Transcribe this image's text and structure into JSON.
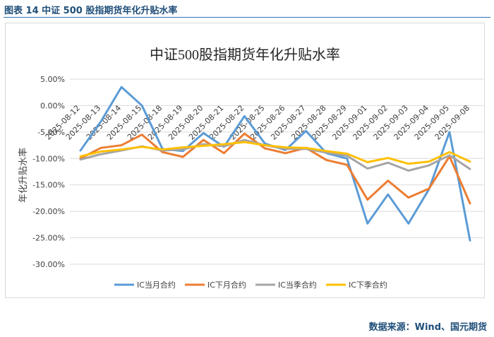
{
  "header": {
    "figure_title": "图表 14  中证 500 股指期货年化升贴水率"
  },
  "footer": {
    "source": "数据来源：Wind、国元期货"
  },
  "chart_data": {
    "type": "line",
    "title": "中证500股指期货年化升贴水率",
    "ylabel": "年化升贴水率",
    "xlabel": "",
    "ylim": [
      -30,
      5
    ],
    "y_tick_step": 5,
    "y_tick_format": "percent_2dp",
    "grid": "horizontal",
    "legend_position": "bottom",
    "categories": [
      "2025-08-12",
      "2025-08-13",
      "2025-08-14",
      "2025-08-15",
      "2025-08-18",
      "2025-08-19",
      "2025-08-20",
      "2025-08-21",
      "2025-08-22",
      "2025-08-25",
      "2025-08-26",
      "2025-08-27",
      "2025-08-28",
      "2025-08-29",
      "2025-09-01",
      "2025-09-02",
      "2025-09-03",
      "2025-09-04",
      "2025-09-05",
      "2025-09-08"
    ],
    "series": [
      {
        "name": "IC当月合约",
        "color": "#5b9bd5",
        "values": [
          -8.5,
          -3.0,
          3.5,
          0.0,
          -8.2,
          -8.6,
          -5.2,
          -7.8,
          -2.0,
          -7.2,
          -8.4,
          -4.8,
          -9.0,
          -10.0,
          -22.3,
          -16.8,
          -22.3,
          -15.8,
          -5.0,
          -25.5
        ]
      },
      {
        "name": "IC下月合约",
        "color": "#ed7d31",
        "values": [
          -10.0,
          -8.0,
          -7.5,
          -5.5,
          -8.8,
          -9.7,
          -6.5,
          -9.0,
          -5.3,
          -8.1,
          -9.0,
          -8.0,
          -10.3,
          -11.2,
          -17.8,
          -14.2,
          -17.4,
          -15.7,
          -9.6,
          -18.5
        ]
      },
      {
        "name": "IC当季合约",
        "color": "#a5a5a5",
        "values": [
          -10.2,
          -9.2,
          -8.5,
          -7.7,
          -8.5,
          -8.3,
          -7.3,
          -7.7,
          -6.5,
          -7.5,
          -8.2,
          -8.2,
          -8.9,
          -9.5,
          -11.9,
          -10.8,
          -12.3,
          -11.3,
          -9.4,
          -12.0
        ]
      },
      {
        "name": "IC下季合约",
        "color": "#ffc000",
        "values": [
          -9.6,
          -8.7,
          -8.3,
          -7.8,
          -8.3,
          -7.9,
          -7.6,
          -7.3,
          -6.9,
          -7.5,
          -7.9,
          -8.0,
          -8.6,
          -9.1,
          -10.7,
          -9.9,
          -11.0,
          -10.6,
          -8.8,
          -10.6
        ]
      }
    ]
  }
}
